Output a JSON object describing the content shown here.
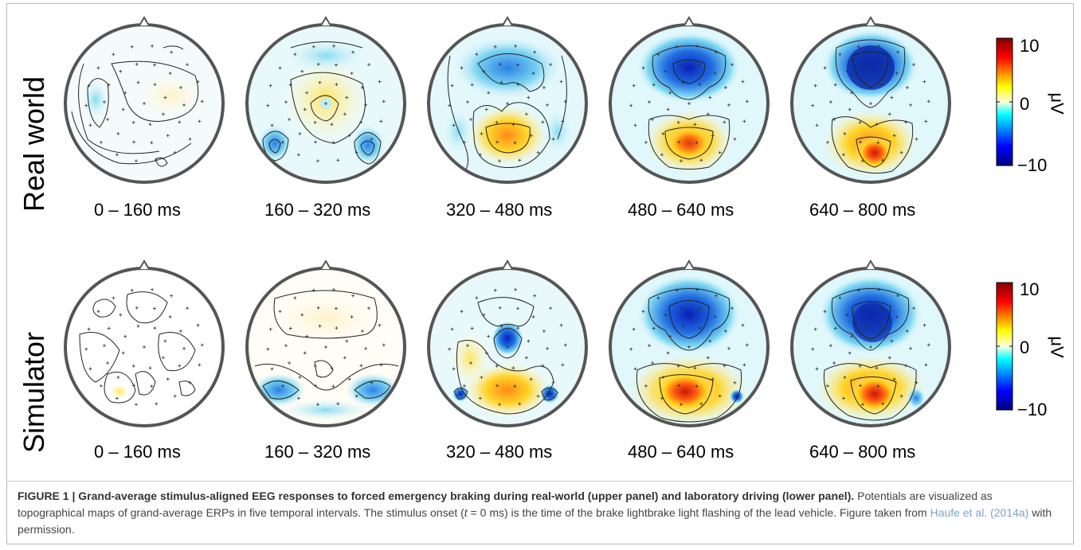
{
  "rows": [
    {
      "label": "Real world",
      "intervals": [
        "0 – 160 ms",
        "160 – 320 ms",
        "320 – 480 ms",
        "480 – 640 ms",
        "640 – 800 ms"
      ]
    },
    {
      "label": "Simulator",
      "intervals": [
        "0 – 160 ms",
        "160 – 320 ms",
        "320 – 480 ms",
        "480 – 640 ms",
        "640 – 800 ms"
      ]
    }
  ],
  "colorbar": {
    "max_label": "10",
    "mid_label": "0",
    "min_label": "−10",
    "unit": "μV",
    "colors": [
      "#00007f",
      "#0000ff",
      "#00ffff",
      "#ffff80",
      "#ffff00",
      "#ff0000",
      "#7f0000"
    ]
  },
  "caption": {
    "head": "FIGURE 1 | Grand-average stimulus-aligned EEG responses to forced emergency braking during real-world (upper panel) and laboratory driving (lower panel).",
    "body1": " Potentials are visualized as topographical maps of grand-average ERPs in five temporal intervals. The stimulus onset (",
    "t_symbol": "t",
    "body2": " = 0 ms) is the time of the brake lightbrake light flashing of the lead vehicle. Figure taken from ",
    "citation": "Haufe et al. (2014a)",
    "body3": " with permission."
  }
}
